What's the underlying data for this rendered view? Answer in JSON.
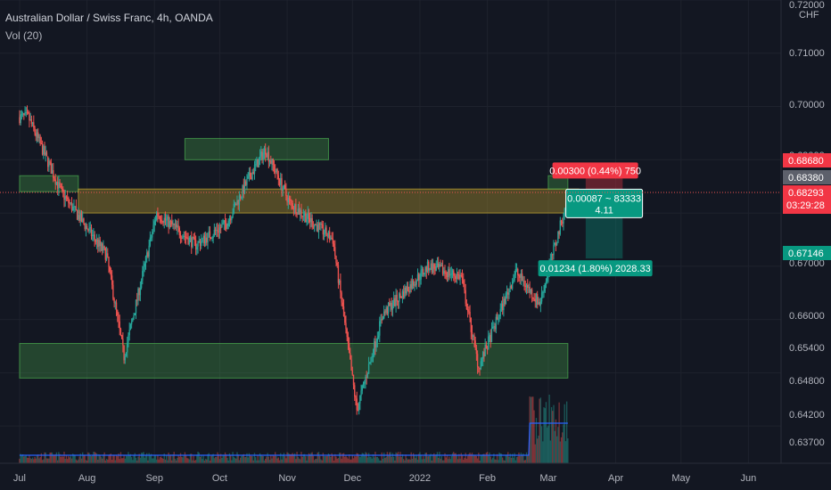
{
  "header": {
    "title": "Australian Dollar / Swiss Franc, 4h, OANDA",
    "indicator": "Vol (20)"
  },
  "price_axis": {
    "currency": "CHF"
  },
  "colors": {
    "bg": "#131722",
    "grid": "#1e222d",
    "up": "#26a69a",
    "down": "#ef5350",
    "volume_ma": "#2962ff",
    "zone_green": "#4caf50",
    "zone_yellow": "#c8a832",
    "stop": "#f23645",
    "target": "#089981"
  },
  "chart_data": {
    "type": "candlestick",
    "x": [
      "2021-07-05",
      "2021-07-20",
      "2021-08-10",
      "2021-08-18",
      "2021-09-02",
      "2021-09-20",
      "2021-10-04",
      "2021-10-15",
      "2021-10-22",
      "2021-11-02",
      "2021-11-22",
      "2021-12-03",
      "2021-12-15",
      "2022-01-05",
      "2022-01-20",
      "2022-01-28",
      "2022-02-14",
      "2022-02-25",
      "2022-03-10"
    ],
    "close": [
      0.698,
      0.684,
      0.672,
      0.653,
      0.68,
      0.674,
      0.678,
      0.687,
      0.692,
      0.682,
      0.675,
      0.643,
      0.661,
      0.67,
      0.668,
      0.651,
      0.669,
      0.663,
      0.6829
    ],
    "ylim": [
      0.633,
      0.72
    ],
    "tick_labels": [
      "0.72000",
      "0.71000",
      "0.70000",
      "0.69000",
      "0.68680",
      "0.68380",
      "0.68293",
      "0.67146",
      "0.67000",
      "0.66000",
      "0.65400",
      "0.64800",
      "0.64200",
      "0.63700"
    ],
    "x_tick_labels": [
      "Jul",
      "Aug",
      "Sep",
      "Oct",
      "Nov",
      "Dec",
      "2022",
      "Feb",
      "Mar",
      "Apr",
      "May",
      "Jun"
    ],
    "last_price": {
      "value": "0.68293",
      "countdown": "03:29:28"
    },
    "zones": [
      {
        "name": "top-resistance-zone",
        "color": "green",
        "x": [
          "2021-09-15",
          "2021-11-20"
        ],
        "y": [
          0.69,
          0.694
        ]
      },
      {
        "name": "left-resistance-zone",
        "color": "green",
        "x": [
          "2021-07-01",
          "2021-07-28"
        ],
        "y": [
          0.684,
          0.687
        ]
      },
      {
        "name": "mid-resistance-zone",
        "color": "yellow",
        "x": [
          "2021-07-28",
          "2022-03-15"
        ],
        "y": [
          0.68,
          0.6845
        ]
      },
      {
        "name": "support-zone",
        "color": "green",
        "x": [
          "2021-07-01",
          "2022-03-10"
        ],
        "y": [
          0.649,
          0.6555
        ]
      },
      {
        "name": "mar-resistance-zone",
        "color": "green",
        "x": [
          "2022-03-01",
          "2022-03-10"
        ],
        "y": [
          0.6845,
          0.687
        ]
      }
    ],
    "position": {
      "entry": 0.6838,
      "stop": 0.6868,
      "target": 0.67146,
      "x": [
        "2022-03-10",
        "2022-03-27"
      ],
      "stop_label": "0.00300 (0.44%) 750",
      "entry_label_line1": "0.00087 ~ 83333",
      "entry_label_line2": "4.11",
      "target_label": "0.01234 (1.80%) 2028.33"
    }
  }
}
